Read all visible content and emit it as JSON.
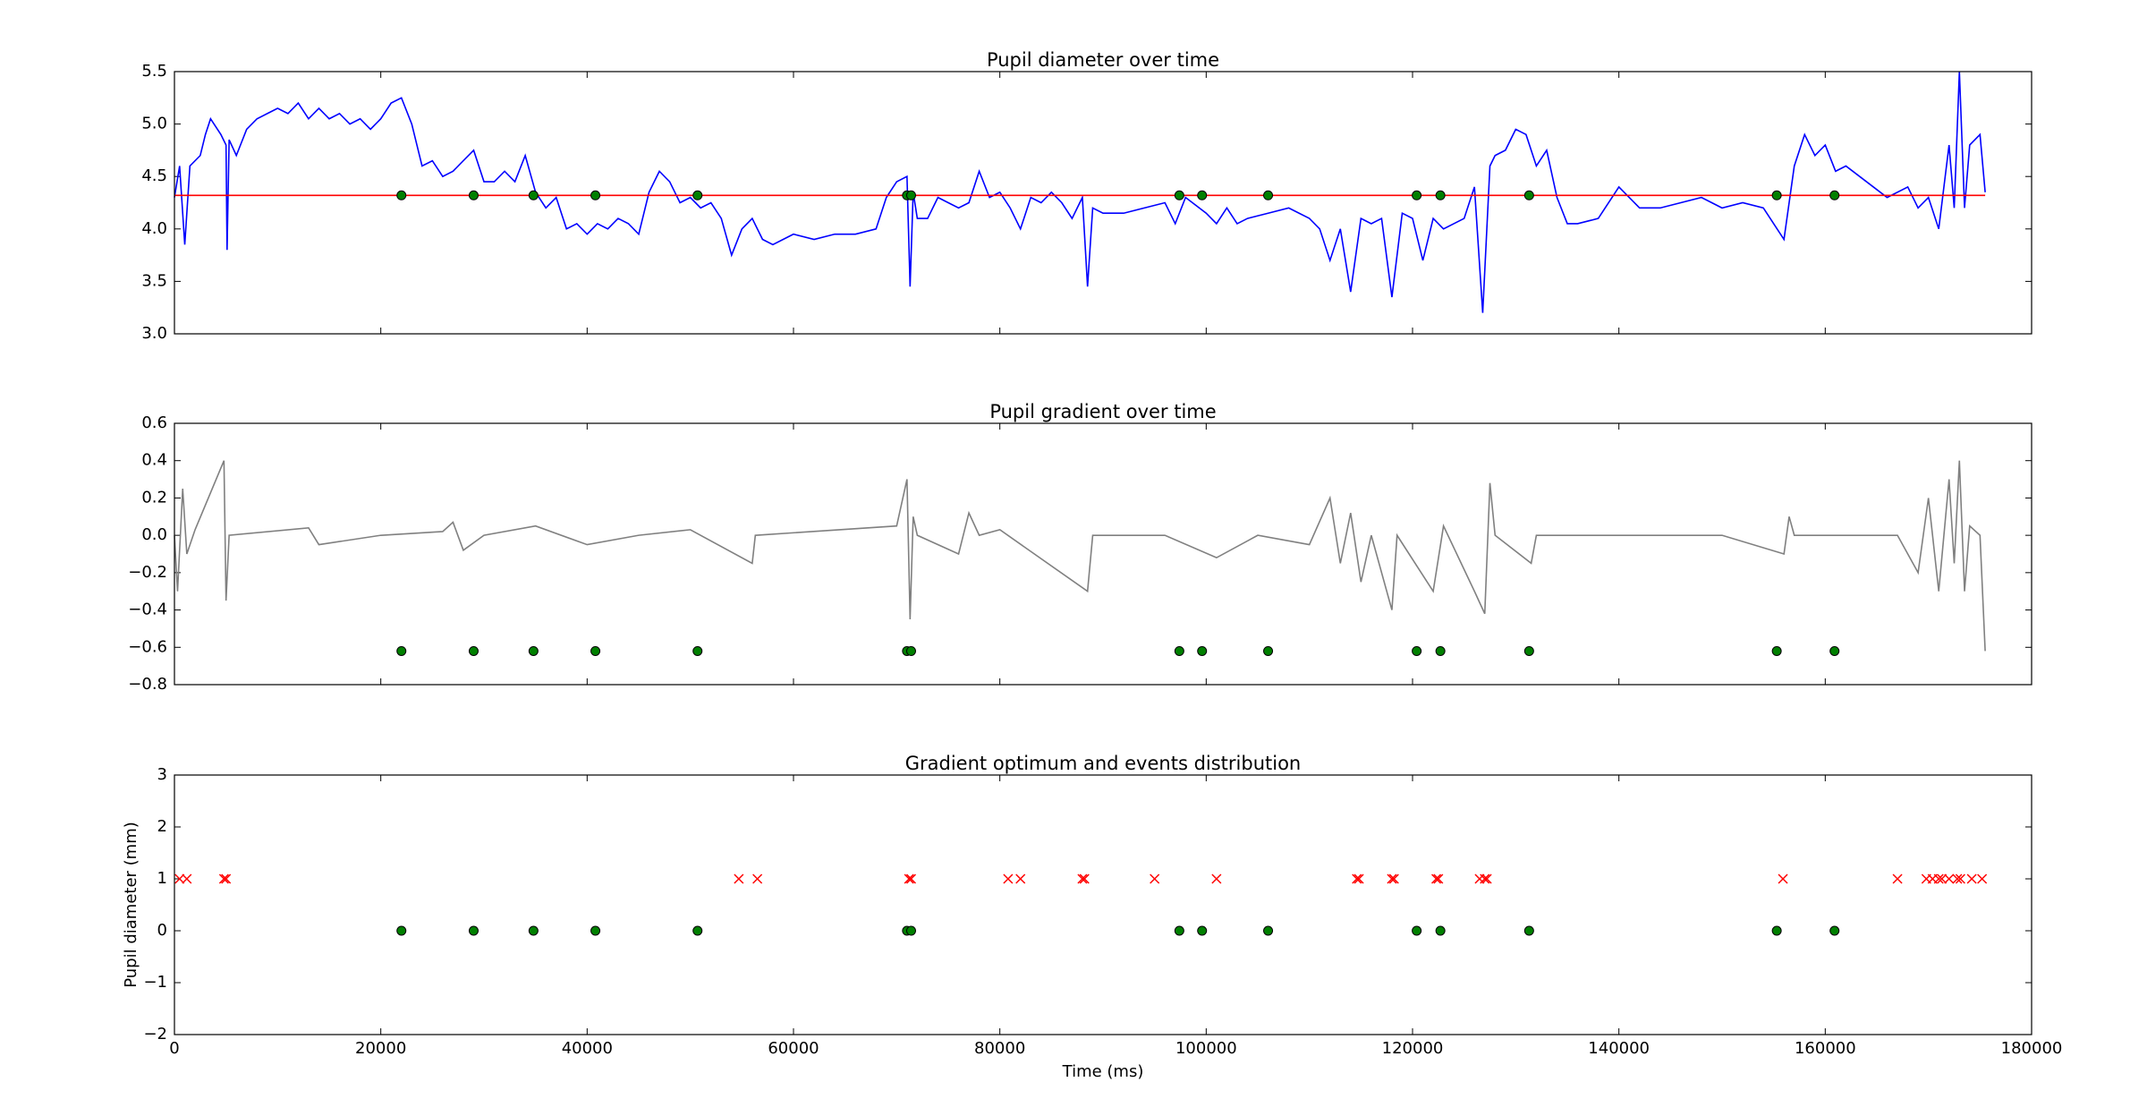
{
  "chart_data": [
    {
      "type": "line",
      "title": "Pupil diameter over time",
      "xlim": [
        0,
        180000
      ],
      "xticks": [
        0,
        20000,
        40000,
        60000,
        80000,
        100000,
        120000,
        140000,
        160000,
        180000
      ],
      "ylim": [
        3,
        5.5
      ],
      "yticks": [
        {
          "value": 3,
          "label": "3.0"
        },
        3.5,
        {
          "value": 4,
          "label": "4.0"
        },
        4.5,
        {
          "value": 5,
          "label": "5.0"
        },
        5.5
      ],
      "series": [
        {
          "type": "line",
          "color": "#0000ff",
          "x": [
            0,
            500,
            1000,
            1500,
            2500,
            3000,
            3500,
            4500,
            5000,
            5100,
            5300,
            6000,
            7000,
            8000,
            9000,
            10000,
            11000,
            12000,
            13000,
            14000,
            15000,
            16000,
            17000,
            18000,
            19000,
            20000,
            21000,
            22000,
            23000,
            24000,
            25000,
            26000,
            27000,
            28000,
            29000,
            30000,
            31000,
            32000,
            33000,
            34000,
            35000,
            36000,
            37000,
            38000,
            39000,
            40000,
            41000,
            42000,
            43000,
            44000,
            45000,
            46000,
            47000,
            48000,
            49000,
            50000,
            51000,
            52000,
            53000,
            54000,
            55000,
            56000,
            57000,
            58000,
            60000,
            62000,
            64000,
            66000,
            68000,
            69000,
            70000,
            71000,
            71300,
            71600,
            72000,
            73000,
            74000,
            75000,
            76000,
            77000,
            78000,
            79000,
            80000,
            81000,
            82000,
            83000,
            84000,
            85000,
            86000,
            87000,
            88000,
            88500,
            89000,
            90000,
            92000,
            94000,
            96000,
            97000,
            98000,
            100000,
            101000,
            102000,
            103000,
            104000,
            106000,
            108000,
            110000,
            111000,
            112000,
            113000,
            114000,
            115000,
            116000,
            117000,
            118000,
            119000,
            120000,
            121000,
            122000,
            123000,
            124000,
            125000,
            126000,
            126800,
            127500,
            128000,
            129000,
            130000,
            131000,
            132000,
            133000,
            134000,
            135000,
            136000,
            138000,
            140000,
            142000,
            144000,
            146000,
            148000,
            150000,
            152000,
            154000,
            155000,
            156000,
            157000,
            158000,
            159000,
            160000,
            161000,
            162000,
            164000,
            166000,
            168000,
            169000,
            170000,
            171000,
            172000,
            172500,
            173000,
            173500,
            174000,
            175000,
            175500
          ],
          "values": [
            4.3,
            4.6,
            3.85,
            4.6,
            4.7,
            4.9,
            5.05,
            4.9,
            4.8,
            3.8,
            4.85,
            4.7,
            4.95,
            5.05,
            5.1,
            5.15,
            5.1,
            5.2,
            5.05,
            5.15,
            5.05,
            5.1,
            5.0,
            5.05,
            4.95,
            5.05,
            5.2,
            5.25,
            5.0,
            4.6,
            4.65,
            4.5,
            4.55,
            4.65,
            4.75,
            4.45,
            4.45,
            4.55,
            4.45,
            4.7,
            4.35,
            4.2,
            4.3,
            4.0,
            4.05,
            3.95,
            4.05,
            4.0,
            4.1,
            4.05,
            3.95,
            4.35,
            4.55,
            4.45,
            4.25,
            4.3,
            4.2,
            4.25,
            4.1,
            3.75,
            4.0,
            4.1,
            3.9,
            3.85,
            3.95,
            3.9,
            3.95,
            3.95,
            4.0,
            4.3,
            4.45,
            4.5,
            3.45,
            4.35,
            4.1,
            4.1,
            4.3,
            4.25,
            4.2,
            4.25,
            4.55,
            4.3,
            4.35,
            4.2,
            4.0,
            4.3,
            4.25,
            4.35,
            4.25,
            4.1,
            4.3,
            3.45,
            4.2,
            4.15,
            4.15,
            4.2,
            4.25,
            4.05,
            4.3,
            4.15,
            4.05,
            4.2,
            4.05,
            4.1,
            4.15,
            4.2,
            4.1,
            4.0,
            3.7,
            4.0,
            3.4,
            4.1,
            4.05,
            4.1,
            3.35,
            4.15,
            4.1,
            3.7,
            4.1,
            4.0,
            4.05,
            4.1,
            4.4,
            3.2,
            4.6,
            4.7,
            4.75,
            4.95,
            4.9,
            4.6,
            4.75,
            4.3,
            4.05,
            4.05,
            4.1,
            4.4,
            4.2,
            4.2,
            4.25,
            4.3,
            4.2,
            4.25,
            4.2,
            4.05,
            3.9,
            4.6,
            4.9,
            4.7,
            4.8,
            4.55,
            4.6,
            4.45,
            4.3,
            4.4,
            4.2,
            4.3,
            4.0,
            4.8,
            4.2,
            5.5,
            4.2,
            4.8,
            4.9,
            4.35
          ]
        },
        {
          "type": "line",
          "color": "#ff0000",
          "x": [
            0,
            175500
          ],
          "values": [
            4.32,
            4.32
          ]
        },
        {
          "type": "scatter",
          "marker": "o",
          "color": "#008000",
          "x": [
            22000,
            29000,
            34800,
            40800,
            50700,
            71000,
            71400,
            97400,
            99600,
            106000,
            120400,
            122700,
            131300,
            155300,
            160900
          ],
          "values": [
            4.32,
            4.32,
            4.32,
            4.32,
            4.32,
            4.32,
            4.32,
            4.32,
            4.32,
            4.32,
            4.32,
            4.32,
            4.32,
            4.32,
            4.32
          ]
        }
      ]
    },
    {
      "type": "line",
      "title": "Pupil gradient over time",
      "xlim": [
        0,
        180000
      ],
      "xticks": [
        0,
        20000,
        40000,
        60000,
        80000,
        100000,
        120000,
        140000,
        160000,
        180000
      ],
      "ylim": [
        -0.8,
        0.6
      ],
      "yticks": [
        {
          "value": -0.8,
          "label": "−0.8"
        },
        {
          "value": -0.6,
          "label": "−0.6"
        },
        {
          "value": -0.4,
          "label": "−0.4"
        },
        {
          "value": -0.2,
          "label": "−0.2"
        },
        {
          "value": 0,
          "label": "0.0"
        },
        0.2,
        0.4,
        0.6
      ],
      "series": [
        {
          "type": "line",
          "color": "#808080",
          "x": [
            0,
            300,
            800,
            1200,
            2000,
            4800,
            5000,
            5300,
            13000,
            14000,
            20000,
            26000,
            27000,
            28000,
            30000,
            35000,
            40000,
            45000,
            50000,
            56000,
            56300,
            70000,
            71000,
            71300,
            71600,
            72000,
            76000,
            77000,
            78000,
            80000,
            88500,
            89000,
            96000,
            101000,
            105000,
            110000,
            112000,
            113000,
            114000,
            115000,
            116000,
            118000,
            118500,
            122000,
            123000,
            126000,
            127000,
            127500,
            128000,
            131500,
            132000,
            140000,
            150000,
            156000,
            156500,
            157000,
            167000,
            169000,
            170000,
            171000,
            172000,
            172500,
            173000,
            173500,
            174000,
            175000,
            175500
          ],
          "values": [
            0,
            -0.3,
            0.25,
            -0.1,
            0.03,
            0.4,
            -0.35,
            0,
            0.04,
            -0.05,
            0,
            0.02,
            0.07,
            -0.08,
            0,
            0.05,
            -0.05,
            0,
            0.03,
            -0.15,
            0,
            0.05,
            0.3,
            -0.45,
            0.1,
            0,
            -0.1,
            0.12,
            0,
            0.03,
            -0.3,
            0,
            0,
            -0.12,
            0,
            -0.05,
            0.2,
            -0.15,
            0.12,
            -0.25,
            0,
            -0.4,
            0,
            -0.3,
            0.05,
            -0.3,
            -0.42,
            0.28,
            0,
            -0.15,
            0,
            0,
            0,
            -0.1,
            0.1,
            0,
            0,
            -0.2,
            0.2,
            -0.3,
            0.3,
            -0.15,
            0.4,
            -0.3,
            0.05,
            0,
            -0.62
          ]
        },
        {
          "type": "scatter",
          "marker": "o",
          "color": "#008000",
          "x": [
            22000,
            29000,
            34800,
            40800,
            50700,
            71000,
            71400,
            97400,
            99600,
            106000,
            120400,
            122700,
            131300,
            155300,
            160900
          ],
          "values": [
            -0.62,
            -0.62,
            -0.62,
            -0.62,
            -0.62,
            -0.62,
            -0.62,
            -0.62,
            -0.62,
            -0.62,
            -0.62,
            -0.62,
            -0.62,
            -0.62,
            -0.62
          ]
        }
      ]
    },
    {
      "type": "scatter",
      "title": "Gradient optimum and events distribution",
      "xlabel": "Time (ms)",
      "ylabel": "Pupil diameter (mm)",
      "xlim": [
        0,
        180000
      ],
      "xticks": [
        0,
        20000,
        40000,
        60000,
        80000,
        100000,
        120000,
        140000,
        160000,
        180000
      ],
      "ylim": [
        -2,
        3
      ],
      "yticks": [
        {
          "value": -2,
          "label": "−2"
        },
        {
          "value": -1,
          "label": "−1"
        },
        0,
        1,
        2,
        3
      ],
      "series": [
        {
          "type": "scatter",
          "marker": "x",
          "color": "#ff0000",
          "x": [
            500,
            1200,
            4800,
            5000,
            54700,
            56500,
            71200,
            71400,
            80800,
            82000,
            88000,
            88200,
            95000,
            101000,
            114600,
            114800,
            118000,
            118200,
            122300,
            122500,
            126500,
            127000,
            127200,
            155900,
            167000,
            169800,
            170400,
            171000,
            171300,
            172000,
            172800,
            173100,
            174200,
            175200
          ],
          "values": [
            1,
            1,
            1,
            1,
            1,
            1,
            1,
            1,
            1,
            1,
            1,
            1,
            1,
            1,
            1,
            1,
            1,
            1,
            1,
            1,
            1,
            1,
            1,
            1,
            1,
            1,
            1,
            1,
            1,
            1,
            1,
            1,
            1,
            1
          ]
        },
        {
          "type": "scatter",
          "marker": "o",
          "color": "#008000",
          "x": [
            22000,
            29000,
            34800,
            40800,
            50700,
            71000,
            71400,
            97400,
            99600,
            106000,
            120400,
            122700,
            131300,
            155300,
            160900
          ],
          "values": [
            0,
            0,
            0,
            0,
            0,
            0,
            0,
            0,
            0,
            0,
            0,
            0,
            0,
            0,
            0
          ]
        }
      ]
    }
  ]
}
